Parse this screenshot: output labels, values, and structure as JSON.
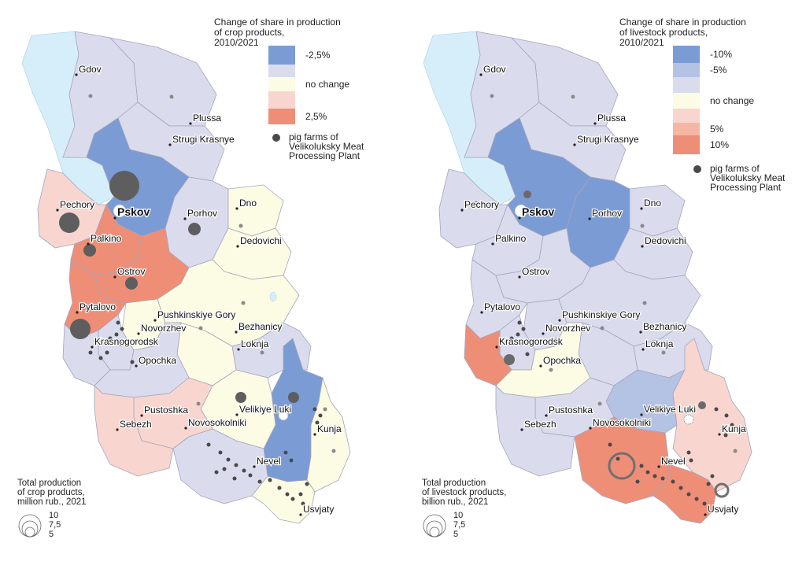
{
  "maps": [
    {
      "id": "crop",
      "legend": {
        "title_lines": [
          "Change of share in production",
          "of crop products,",
          "2010/2021"
        ],
        "classes": [
          {
            "label": "-2,5%",
            "color": "#7b9bd4"
          },
          {
            "label": "",
            "color": "#dadcee"
          },
          {
            "label": "no change",
            "color": "#fcfce4"
          },
          {
            "label": "",
            "color": "#f8d6cf"
          },
          {
            "label": "2,5%",
            "color": "#ef8e77"
          }
        ],
        "farms_label_lines": [
          "pig farms of",
          "Velikoluksky Meat",
          "Processing Plant"
        ]
      },
      "size_legend": {
        "title_lines": [
          "Total production",
          "of crop products,",
          "million rub., 2021"
        ],
        "values": [
          "10",
          "7,5",
          "5"
        ]
      },
      "cities": [
        {
          "name": "Gdov"
        },
        {
          "name": "Plussa"
        },
        {
          "name": "Strugi Krasnye"
        },
        {
          "name": "Pechory"
        },
        {
          "name": "Pskov"
        },
        {
          "name": "Porhov"
        },
        {
          "name": "Dno"
        },
        {
          "name": "Dedovichi"
        },
        {
          "name": "Palkino"
        },
        {
          "name": "Ostrov"
        },
        {
          "name": "Pytalovo"
        },
        {
          "name": "Pushkinskiye Gory"
        },
        {
          "name": "Novorzhev"
        },
        {
          "name": "Bezhanicy"
        },
        {
          "name": "Krasnogorodsk"
        },
        {
          "name": "Loknja"
        },
        {
          "name": "Opochka"
        },
        {
          "name": "Pustoshka"
        },
        {
          "name": "Velikiye Luki"
        },
        {
          "name": "Sebezh"
        },
        {
          "name": "Novosokolniki"
        },
        {
          "name": "Kunja"
        },
        {
          "name": "Nevel"
        },
        {
          "name": "Usvjaty"
        }
      ]
    },
    {
      "id": "livestock",
      "legend": {
        "title_lines": [
          "Change of share in production",
          "of livestock products,",
          "2010/2021"
        ],
        "classes": [
          {
            "label": "-10%",
            "color": "#7b9bd4"
          },
          {
            "label": "-5%",
            "color": "#b4c2e4"
          },
          {
            "label": "",
            "color": "#dadcee"
          },
          {
            "label": "no change",
            "color": "#fcfce4"
          },
          {
            "label": "",
            "color": "#f8d6cf"
          },
          {
            "label": "5%",
            "color": "#f5b6a2"
          },
          {
            "label": "10%",
            "color": "#ef8e77"
          }
        ],
        "farms_label_lines": [
          "pig farms of",
          "Velikoluksky Meat",
          "Processing Plant"
        ]
      },
      "size_legend": {
        "title_lines": [
          "Total production",
          "of livestock products,",
          "billion rub., 2021"
        ],
        "values": [
          "10",
          "7,5",
          "5"
        ]
      },
      "cities": [
        {
          "name": "Gdov"
        },
        {
          "name": "Plussa"
        },
        {
          "name": "Strugi Krasnye"
        },
        {
          "name": "Pechory"
        },
        {
          "name": "Pskov"
        },
        {
          "name": "Porhov"
        },
        {
          "name": "Dno"
        },
        {
          "name": "Dedovichi"
        },
        {
          "name": "Palkino"
        },
        {
          "name": "Ostrov"
        },
        {
          "name": "Pytalovo"
        },
        {
          "name": "Pushkinskiye Gory"
        },
        {
          "name": "Novorzhev"
        },
        {
          "name": "Bezhanicy"
        },
        {
          "name": "Krasnogorodsk"
        },
        {
          "name": "Loknja"
        },
        {
          "name": "Opochka"
        },
        {
          "name": "Pustoshka"
        },
        {
          "name": "Velikiye Luki"
        },
        {
          "name": "Sebezh"
        },
        {
          "name": "Novosokolniki"
        },
        {
          "name": "Kunja"
        },
        {
          "name": "Nevel"
        },
        {
          "name": "Usvjaty"
        }
      ]
    }
  ],
  "colors": {
    "water": "#d6eef9",
    "border": "#a4a4bc",
    "farm": "#4a4a4a",
    "centroid": "#8a8a8a",
    "ring": "#707070"
  }
}
